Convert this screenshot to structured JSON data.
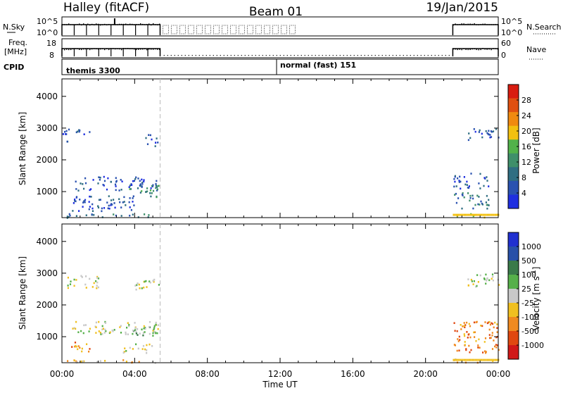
{
  "header": {
    "station": "Halley (fitACF)",
    "beam": "Beam 01",
    "date": "19/Jan/2015"
  },
  "top_panels": {
    "nsky_label": "N.Sky",
    "nsky_ticks": [
      "10^5",
      "10^0"
    ],
    "nsearch_label": "N.Search",
    "nsearch_ticks": [
      "10^5",
      "10^0"
    ],
    "freq_label": "Freq.",
    "freq_unit": "[MHz]",
    "freq_ticks": [
      "18",
      "8"
    ],
    "nave_label": "Nave",
    "nave_ticks": [
      "60",
      "0"
    ],
    "cpid_label": "CPID",
    "cpid_segments": [
      {
        "name": "themis 3300",
        "start_hr": 0.0
      },
      {
        "name": "normal (fast) 151",
        "start_hr": 12.0
      }
    ],
    "data_windows_hr": [
      [
        0.0,
        5.4
      ],
      [
        21.5,
        24.0
      ]
    ]
  },
  "colors": {
    "power_scale": [
      "#1f2fe0",
      "#2a52b0",
      "#2f6e82",
      "#3f8f6a",
      "#52b24a",
      "#f2c010",
      "#f08a10",
      "#e05010",
      "#d81c10"
    ],
    "velocity_scale": [
      "#2030d0",
      "#2850a8",
      "#3a7a4a",
      "#56b04a",
      "#c8c8c8",
      "#f0c020",
      "#f08a20",
      "#e04810",
      "#d01818"
    ]
  },
  "chart_data": [
    {
      "type": "heatmap",
      "title": "Power",
      "ylabel": "Slant Range [km]",
      "xlabel": "Time UT",
      "xlim_hr": [
        0,
        24
      ],
      "ylim_km": [
        180,
        4550
      ],
      "x_ticks": [
        "00:00",
        "04:00",
        "08:00",
        "12:00",
        "16:00",
        "20:00",
        "00:00"
      ],
      "y_ticks": [
        "1000",
        "2000",
        "3000",
        "4000"
      ],
      "colorbar_label": "Power [dB]",
      "colorbar_ticks": [
        "4",
        "8",
        "12",
        "16",
        "20",
        "24",
        "28"
      ],
      "colorbar_range": [
        0,
        32
      ],
      "regions": [
        {
          "t": [
            0.6,
            5.3
          ],
          "r": [
            1050,
            1500
          ],
          "level": 6
        },
        {
          "t": [
            0.0,
            1.6
          ],
          "r": [
            2600,
            3000
          ],
          "level": 4
        },
        {
          "t": [
            4.5,
            5.3
          ],
          "r": [
            2450,
            2850
          ],
          "level": 5
        },
        {
          "t": [
            3.5,
            5.3
          ],
          "r": [
            850,
            1250
          ],
          "level": 14
        },
        {
          "t": [
            0.2,
            5.3
          ],
          "r": [
            200,
            330
          ],
          "level": 8
        },
        {
          "t": [
            0.5,
            4.0
          ],
          "r": [
            400,
            900
          ],
          "level": 7
        },
        {
          "t": [
            21.5,
            24.0
          ],
          "r": [
            200,
            340
          ],
          "level": 18
        },
        {
          "t": [
            21.5,
            23.5
          ],
          "r": [
            450,
            1000
          ],
          "level": 10
        },
        {
          "t": [
            21.5,
            23.5
          ],
          "r": [
            1100,
            1600
          ],
          "level": 6
        },
        {
          "t": [
            22.3,
            24.0
          ],
          "r": [
            2600,
            3000
          ],
          "level": 4
        }
      ]
    },
    {
      "type": "heatmap",
      "title": "Velocity",
      "ylabel": "Slant Range [km]",
      "xlabel": "Time UT",
      "xlim_hr": [
        0,
        24
      ],
      "ylim_km": [
        180,
        4550
      ],
      "x_ticks": [
        "00:00",
        "04:00",
        "08:00",
        "12:00",
        "16:00",
        "20:00",
        "00:00"
      ],
      "y_ticks": [
        "1000",
        "2000",
        "3000",
        "4000"
      ],
      "colorbar_label": "Velocity [m s^-1]",
      "colorbar_ticks": [
        "1000",
        "500",
        "100",
        "25",
        "-25",
        "-100",
        "-500",
        "-1000"
      ],
      "regions": [
        {
          "t": [
            0.5,
            5.3
          ],
          "r": [
            1100,
            1500
          ],
          "level": 4
        },
        {
          "t": [
            3.5,
            5.3
          ],
          "r": [
            1050,
            1500
          ],
          "level": 3
        },
        {
          "t": [
            0.3,
            1.5
          ],
          "r": [
            550,
            900
          ],
          "level": 6
        },
        {
          "t": [
            0.2,
            5.3
          ],
          "r": [
            200,
            300
          ],
          "level": 5
        },
        {
          "t": [
            4.0,
            5.3
          ],
          "r": [
            2450,
            2850
          ],
          "level": 4
        },
        {
          "t": [
            0.0,
            2.0
          ],
          "r": [
            2550,
            2950
          ],
          "level": 4
        },
        {
          "t": [
            3.2,
            5.0
          ],
          "r": [
            500,
            850
          ],
          "level": 4
        },
        {
          "t": [
            21.5,
            24.0
          ],
          "r": [
            200,
            320
          ],
          "level": 5
        },
        {
          "t": [
            21.5,
            24.0
          ],
          "r": [
            500,
            1500
          ],
          "level": 6
        },
        {
          "t": [
            22.3,
            24.0
          ],
          "r": [
            2600,
            3000
          ],
          "level": 4
        }
      ]
    }
  ]
}
